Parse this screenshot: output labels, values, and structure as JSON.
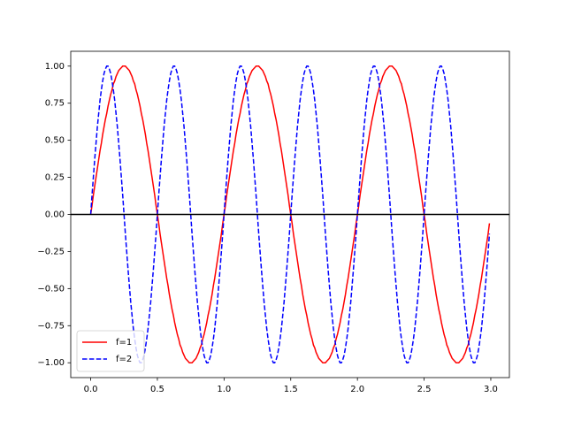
{
  "chart_data": {
    "type": "line",
    "x": [
      0,
      0.01,
      0.02,
      0.03,
      0.04,
      0.05,
      0.06,
      0.07,
      0.08,
      0.09,
      0.1,
      0.11,
      0.12,
      0.13,
      0.14,
      0.15,
      0.16,
      0.17,
      0.18,
      0.19,
      0.2,
      0.21,
      0.22,
      0.23,
      0.24,
      0.25,
      0.26,
      0.27,
      0.28,
      0.29,
      0.3,
      0.31,
      0.32,
      0.33,
      0.34,
      0.35,
      0.36,
      0.37,
      0.38,
      0.39,
      0.4,
      0.41,
      0.42,
      0.43,
      0.44,
      0.45,
      0.46,
      0.47,
      0.48,
      0.49,
      0.5,
      0.51,
      0.52,
      0.53,
      0.54,
      0.55,
      0.56,
      0.57,
      0.58,
      0.59,
      0.6,
      0.61,
      0.62,
      0.63,
      0.64,
      0.65,
      0.66,
      0.67,
      0.68,
      0.69,
      0.7,
      0.71,
      0.72,
      0.73,
      0.74,
      0.75,
      0.76,
      0.77,
      0.78,
      0.79,
      0.8,
      0.81,
      0.82,
      0.83,
      0.84,
      0.85,
      0.86,
      0.87,
      0.88,
      0.89,
      0.9,
      0.91,
      0.92,
      0.93,
      0.94,
      0.95,
      0.96,
      0.97,
      0.98,
      0.99,
      1,
      1.01,
      1.02,
      1.03,
      1.04,
      1.05,
      1.06,
      1.07,
      1.08,
      1.09,
      1.1,
      1.11,
      1.12,
      1.13,
      1.14,
      1.15,
      1.16,
      1.17,
      1.18,
      1.19,
      1.2,
      1.21,
      1.22,
      1.23,
      1.24,
      1.25,
      1.26,
      1.27,
      1.28,
      1.29,
      1.3,
      1.31,
      1.32,
      1.33,
      1.34,
      1.35,
      1.36,
      1.37,
      1.38,
      1.39,
      1.4,
      1.41,
      1.42,
      1.43,
      1.44,
      1.45,
      1.46,
      1.47,
      1.48,
      1.49,
      1.5,
      1.51,
      1.52,
      1.53,
      1.54,
      1.55,
      1.56,
      1.57,
      1.58,
      1.59,
      1.6,
      1.61,
      1.62,
      1.63,
      1.64,
      1.65,
      1.66,
      1.67,
      1.68,
      1.69,
      1.7,
      1.71,
      1.72,
      1.73,
      1.74,
      1.75,
      1.76,
      1.77,
      1.78,
      1.79,
      1.8,
      1.81,
      1.82,
      1.83,
      1.84,
      1.85,
      1.86,
      1.87,
      1.88,
      1.89,
      1.9,
      1.91,
      1.92,
      1.93,
      1.94,
      1.95,
      1.96,
      1.97,
      1.98,
      1.99,
      2,
      2.01,
      2.02,
      2.03,
      2.04,
      2.05,
      2.06,
      2.07,
      2.08,
      2.09,
      2.1,
      2.11,
      2.12,
      2.13,
      2.14,
      2.15,
      2.16,
      2.17,
      2.18,
      2.19,
      2.2,
      2.21,
      2.22,
      2.23,
      2.24,
      2.25,
      2.26,
      2.27,
      2.28,
      2.29,
      2.3,
      2.31,
      2.32,
      2.33,
      2.34,
      2.35,
      2.36,
      2.37,
      2.38,
      2.39,
      2.4,
      2.41,
      2.42,
      2.43,
      2.44,
      2.45,
      2.46,
      2.47,
      2.48,
      2.49,
      2.5,
      2.51,
      2.52,
      2.53,
      2.54,
      2.55,
      2.56,
      2.57,
      2.58,
      2.59,
      2.6,
      2.61,
      2.62,
      2.63,
      2.64,
      2.65,
      2.66,
      2.67,
      2.68,
      2.69,
      2.7,
      2.71,
      2.72,
      2.73,
      2.74,
      2.75,
      2.76,
      2.77,
      2.78,
      2.79,
      2.8,
      2.81,
      2.82,
      2.83,
      2.84,
      2.85,
      2.86,
      2.87,
      2.88,
      2.89,
      2.9,
      2.91,
      2.92,
      2.93,
      2.94,
      2.95,
      2.96,
      2.97,
      2.98,
      2.99
    ],
    "series": [
      {
        "name": "f=1",
        "color": "#ff0000",
        "linestyle": "solid",
        "values": [
          0,
          0.06,
          0.13,
          0.19,
          0.25,
          0.31,
          0.37,
          0.43,
          0.48,
          0.54,
          0.59,
          0.64,
          0.68,
          0.73,
          0.77,
          0.81,
          0.84,
          0.88,
          0.9,
          0.93,
          0.95,
          0.97,
          0.98,
          0.99,
          1,
          1,
          1,
          0.99,
          0.98,
          0.97,
          0.95,
          0.93,
          0.9,
          0.88,
          0.84,
          0.81,
          0.77,
          0.73,
          0.68,
          0.64,
          0.59,
          0.54,
          0.48,
          0.43,
          0.37,
          0.31,
          0.25,
          0.19,
          0.13,
          0.06,
          0,
          -0.06,
          -0.13,
          -0.19,
          -0.25,
          -0.31,
          -0.37,
          -0.43,
          -0.48,
          -0.54,
          -0.59,
          -0.64,
          -0.68,
          -0.73,
          -0.77,
          -0.81,
          -0.84,
          -0.88,
          -0.9,
          -0.93,
          -0.95,
          -0.97,
          -0.98,
          -0.99,
          -1,
          -1,
          -1,
          -0.99,
          -0.98,
          -0.97,
          -0.95,
          -0.93,
          -0.9,
          -0.88,
          -0.84,
          -0.81,
          -0.77,
          -0.73,
          -0.68,
          -0.64,
          -0.59,
          -0.54,
          -0.48,
          -0.43,
          -0.37,
          -0.31,
          -0.25,
          -0.19,
          -0.13,
          -0.06,
          0,
          0.06,
          0.13,
          0.19,
          0.25,
          0.31,
          0.37,
          0.43,
          0.48,
          0.54,
          0.59,
          0.64,
          0.68,
          0.73,
          0.77,
          0.81,
          0.84,
          0.88,
          0.9,
          0.93,
          0.95,
          0.97,
          0.98,
          0.99,
          1,
          1,
          1,
          0.99,
          0.98,
          0.97,
          0.95,
          0.93,
          0.9,
          0.88,
          0.84,
          0.81,
          0.77,
          0.73,
          0.68,
          0.64,
          0.59,
          0.54,
          0.48,
          0.43,
          0.37,
          0.31,
          0.25,
          0.19,
          0.13,
          0.06,
          0,
          -0.06,
          -0.13,
          -0.19,
          -0.25,
          -0.31,
          -0.37,
          -0.43,
          -0.48,
          -0.54,
          -0.59,
          -0.64,
          -0.68,
          -0.73,
          -0.77,
          -0.81,
          -0.84,
          -0.88,
          -0.9,
          -0.93,
          -0.95,
          -0.97,
          -0.98,
          -0.99,
          -1,
          -1,
          -1,
          -0.99,
          -0.98,
          -0.97,
          -0.95,
          -0.93,
          -0.9,
          -0.88,
          -0.84,
          -0.81,
          -0.77,
          -0.73,
          -0.68,
          -0.64,
          -0.59,
          -0.54,
          -0.48,
          -0.43,
          -0.37,
          -0.31,
          -0.25,
          -0.19,
          -0.13,
          -0.06,
          0,
          0.06,
          0.13,
          0.19,
          0.25,
          0.31,
          0.37,
          0.43,
          0.48,
          0.54,
          0.59,
          0.64,
          0.68,
          0.73,
          0.77,
          0.81,
          0.84,
          0.88,
          0.9,
          0.93,
          0.95,
          0.97,
          0.98,
          0.99,
          1,
          1,
          1,
          0.99,
          0.98,
          0.97,
          0.95,
          0.93,
          0.9,
          0.88,
          0.84,
          0.81,
          0.77,
          0.73,
          0.68,
          0.64,
          0.59,
          0.54,
          0.48,
          0.43,
          0.37,
          0.31,
          0.25,
          0.19,
          0.13,
          0.06,
          0,
          -0.06,
          -0.13,
          -0.19,
          -0.25,
          -0.31,
          -0.37,
          -0.43,
          -0.48,
          -0.54,
          -0.59,
          -0.64,
          -0.68,
          -0.73,
          -0.77,
          -0.81,
          -0.84,
          -0.88,
          -0.9,
          -0.93,
          -0.95,
          -0.97,
          -0.98,
          -0.99,
          -1,
          -1,
          -1,
          -0.99,
          -0.98,
          -0.97,
          -0.95,
          -0.93,
          -0.9,
          -0.88,
          -0.84,
          -0.81,
          -0.77,
          -0.73,
          -0.68,
          -0.64,
          -0.59,
          -0.54,
          -0.48,
          -0.43,
          -0.37,
          -0.31,
          -0.25,
          -0.19,
          -0.13,
          -0.06
        ]
      },
      {
        "name": "f=2",
        "color": "#0000ff",
        "linestyle": "dashed",
        "values": [
          0,
          0.13,
          0.25,
          0.37,
          0.48,
          0.59,
          0.68,
          0.77,
          0.84,
          0.9,
          0.95,
          0.98,
          1,
          1,
          0.98,
          0.95,
          0.9,
          0.84,
          0.77,
          0.68,
          0.59,
          0.48,
          0.37,
          0.25,
          0.13,
          0,
          -0.13,
          -0.25,
          -0.37,
          -0.48,
          -0.59,
          -0.68,
          -0.77,
          -0.84,
          -0.9,
          -0.95,
          -0.98,
          -1,
          -1,
          -0.98,
          -0.95,
          -0.9,
          -0.84,
          -0.77,
          -0.68,
          -0.59,
          -0.48,
          -0.37,
          -0.25,
          -0.13,
          0,
          0.13,
          0.25,
          0.37,
          0.48,
          0.59,
          0.68,
          0.77,
          0.84,
          0.9,
          0.95,
          0.98,
          1,
          1,
          0.98,
          0.95,
          0.9,
          0.84,
          0.77,
          0.68,
          0.59,
          0.48,
          0.37,
          0.25,
          0.13,
          0,
          -0.13,
          -0.25,
          -0.37,
          -0.48,
          -0.59,
          -0.68,
          -0.77,
          -0.84,
          -0.9,
          -0.95,
          -0.98,
          -1,
          -1,
          -0.98,
          -0.95,
          -0.9,
          -0.84,
          -0.77,
          -0.68,
          -0.59,
          -0.48,
          -0.37,
          -0.25,
          -0.13,
          0,
          0.13,
          0.25,
          0.37,
          0.48,
          0.59,
          0.68,
          0.77,
          0.84,
          0.9,
          0.95,
          0.98,
          1,
          1,
          0.98,
          0.95,
          0.9,
          0.84,
          0.77,
          0.68,
          0.59,
          0.48,
          0.37,
          0.25,
          0.13,
          0,
          -0.13,
          -0.25,
          -0.37,
          -0.48,
          -0.59,
          -0.68,
          -0.77,
          -0.84,
          -0.9,
          -0.95,
          -0.98,
          -1,
          -1,
          -0.98,
          -0.95,
          -0.9,
          -0.84,
          -0.77,
          -0.68,
          -0.59,
          -0.48,
          -0.37,
          -0.25,
          -0.13,
          0,
          0.13,
          0.25,
          0.37,
          0.48,
          0.59,
          0.68,
          0.77,
          0.84,
          0.9,
          0.95,
          0.98,
          1,
          1,
          0.98,
          0.95,
          0.9,
          0.84,
          0.77,
          0.68,
          0.59,
          0.48,
          0.37,
          0.25,
          0.13,
          0,
          -0.13,
          -0.25,
          -0.37,
          -0.48,
          -0.59,
          -0.68,
          -0.77,
          -0.84,
          -0.9,
          -0.95,
          -0.98,
          -1,
          -1,
          -0.98,
          -0.95,
          -0.9,
          -0.84,
          -0.77,
          -0.68,
          -0.59,
          -0.48,
          -0.37,
          -0.25,
          -0.13,
          0,
          0.13,
          0.25,
          0.37,
          0.48,
          0.59,
          0.68,
          0.77,
          0.84,
          0.9,
          0.95,
          0.98,
          1,
          1,
          0.98,
          0.95,
          0.9,
          0.84,
          0.77,
          0.68,
          0.59,
          0.48,
          0.37,
          0.25,
          0.13,
          0,
          -0.13,
          -0.25,
          -0.37,
          -0.48,
          -0.59,
          -0.68,
          -0.77,
          -0.84,
          -0.9,
          -0.95,
          -0.98,
          -1,
          -1,
          -0.98,
          -0.95,
          -0.9,
          -0.84,
          -0.77,
          -0.68,
          -0.59,
          -0.48,
          -0.37,
          -0.25,
          -0.13,
          0,
          0.13,
          0.25,
          0.37,
          0.48,
          0.59,
          0.68,
          0.77,
          0.84,
          0.9,
          0.95,
          0.98,
          1,
          1,
          0.98,
          0.95,
          0.9,
          0.84,
          0.77,
          0.68,
          0.59,
          0.48,
          0.37,
          0.25,
          0.13,
          0,
          -0.13,
          -0.25,
          -0.37,
          -0.48,
          -0.59,
          -0.68,
          -0.77,
          -0.84,
          -0.9,
          -0.95,
          -0.98,
          -1,
          -1,
          -0.98,
          -0.95,
          -0.9,
          -0.84,
          -0.77,
          -0.68,
          -0.59,
          -0.48,
          -0.37,
          -0.25,
          -0.13
        ]
      }
    ],
    "xlim": [
      -0.1495,
      3.1395
    ],
    "ylim": [
      -1.1,
      1.1
    ],
    "xticks": [
      {
        "value": 0,
        "label": "0.0"
      },
      {
        "value": 0.5,
        "label": "0.5"
      },
      {
        "value": 1,
        "label": "1.0"
      },
      {
        "value": 1.5,
        "label": "1.5"
      },
      {
        "value": 2,
        "label": "2.0"
      },
      {
        "value": 2.5,
        "label": "2.5"
      },
      {
        "value": 3,
        "label": "3.0"
      }
    ],
    "yticks": [
      {
        "value": -1,
        "label": "−1.00"
      },
      {
        "value": -0.75,
        "label": "−0.75"
      },
      {
        "value": -0.5,
        "label": "−0.50"
      },
      {
        "value": -0.25,
        "label": "−0.25"
      },
      {
        "value": 0,
        "label": "0.00"
      },
      {
        "value": 0.25,
        "label": "0.25"
      },
      {
        "value": 0.5,
        "label": "0.50"
      },
      {
        "value": 0.75,
        "label": "0.75"
      },
      {
        "value": 1,
        "label": "1.00"
      }
    ],
    "axhline": {
      "y": 0,
      "color": "#000000"
    },
    "legend": "lower left"
  }
}
